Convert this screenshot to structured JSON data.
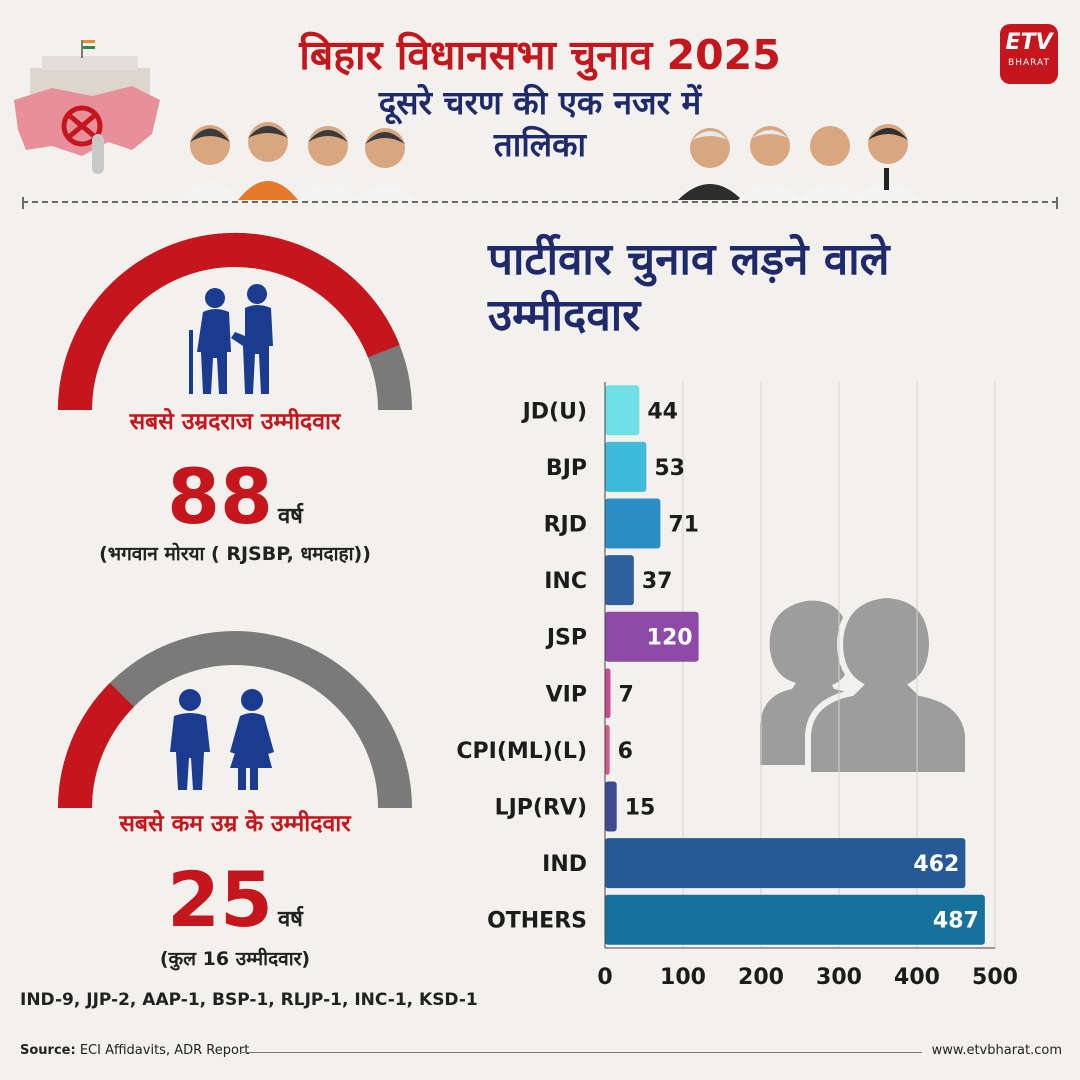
{
  "header": {
    "title": "बिहार विधानसभा चुनाव 2025",
    "subtitle_line1": "दूसरे चरण की एक नजर में",
    "subtitle_line2": "तालिका",
    "logo_line1": "ETV",
    "logo_line2": "BHARAT"
  },
  "oldest": {
    "label": "सबसे उम्रदराज उम्मीदवार",
    "age": "88",
    "unit": "वर्ष",
    "detail": "(भगवान मोरया ( RJSBP, धमदाहा))",
    "gauge_fraction": 0.88
  },
  "youngest": {
    "label": "सबसे कम उम्र के उम्मीदवार",
    "age": "25",
    "unit": "वर्ष",
    "detail": "(कुल 16 उम्मीदवार)",
    "gauge_fraction": 0.25,
    "breakdown": "IND-9, JJP-2, AAP-1, BSP-1, RLJP-1, INC-1, KSD-1"
  },
  "chart_heading_line1": "पार्टीवार चुनाव लड़ने वाले",
  "chart_heading_line2": "उम्मीदवार",
  "chart_data": {
    "type": "bar",
    "orientation": "horizontal",
    "title": "पार्टीवार चुनाव लड़ने वाले उम्मीदवार",
    "categories": [
      "JD(U)",
      "BJP",
      "RJD",
      "INC",
      "JSP",
      "VIP",
      "CPI(ML)(L)",
      "LJP(RV)",
      "IND",
      "OTHERS"
    ],
    "values": [
      44,
      53,
      71,
      37,
      120,
      7,
      6,
      15,
      462,
      487
    ],
    "colors": [
      "#6fe0e6",
      "#3fbbd9",
      "#2b8fc6",
      "#2f5f9c",
      "#8e4aa6",
      "#c84a91",
      "#d85a8a",
      "#3e4a8f",
      "#265a96",
      "#16729a"
    ],
    "xlim": [
      0,
      500
    ],
    "xticks": [
      "0",
      "100",
      "200",
      "300",
      "400",
      "500"
    ],
    "grid": true
  },
  "footer": {
    "source_label": "Source:",
    "source_text": "ECI Affidavits, ADR Report",
    "website": "www.etvbharat.com"
  },
  "colors": {
    "accent_red": "#c4161c",
    "navy": "#1f2a6b",
    "gauge_grey": "#7a7a7a"
  },
  "icons": [
    "flag-icon",
    "ballot-stamp-icon",
    "elderly-couple-icon",
    "young-couple-icon",
    "people-silhouette-icon"
  ]
}
